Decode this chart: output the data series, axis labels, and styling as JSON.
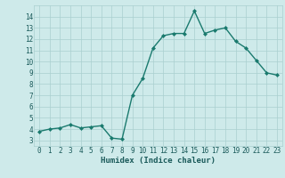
{
  "x": [
    0,
    1,
    2,
    3,
    4,
    5,
    6,
    7,
    8,
    9,
    10,
    11,
    12,
    13,
    14,
    15,
    16,
    17,
    18,
    19,
    20,
    21,
    22,
    23
  ],
  "y": [
    3.8,
    4.0,
    4.1,
    4.4,
    4.1,
    4.2,
    4.3,
    3.2,
    3.1,
    7.0,
    8.5,
    11.2,
    12.3,
    12.5,
    12.5,
    14.5,
    12.5,
    12.8,
    13.0,
    11.8,
    11.2,
    10.1,
    9.0,
    8.8
  ],
  "line_color": "#1a7a6e",
  "marker": "D",
  "marker_size": 2.0,
  "bg_color": "#ceeaea",
  "grid_major_color": "#aacfcf",
  "grid_minor_color": "#c0e0e0",
  "xlabel": "Humidex (Indice chaleur)",
  "ylim": [
    2.5,
    15.0
  ],
  "xlim": [
    -0.5,
    23.5
  ],
  "yticks": [
    3,
    4,
    5,
    6,
    7,
    8,
    9,
    10,
    11,
    12,
    13,
    14
  ],
  "xticks": [
    0,
    1,
    2,
    3,
    4,
    5,
    6,
    7,
    8,
    9,
    10,
    11,
    12,
    13,
    14,
    15,
    16,
    17,
    18,
    19,
    20,
    21,
    22,
    23
  ],
  "line_width": 1.0,
  "font_color": "#1a5a5a",
  "tick_fontsize": 5.5,
  "xlabel_fontsize": 6.5
}
